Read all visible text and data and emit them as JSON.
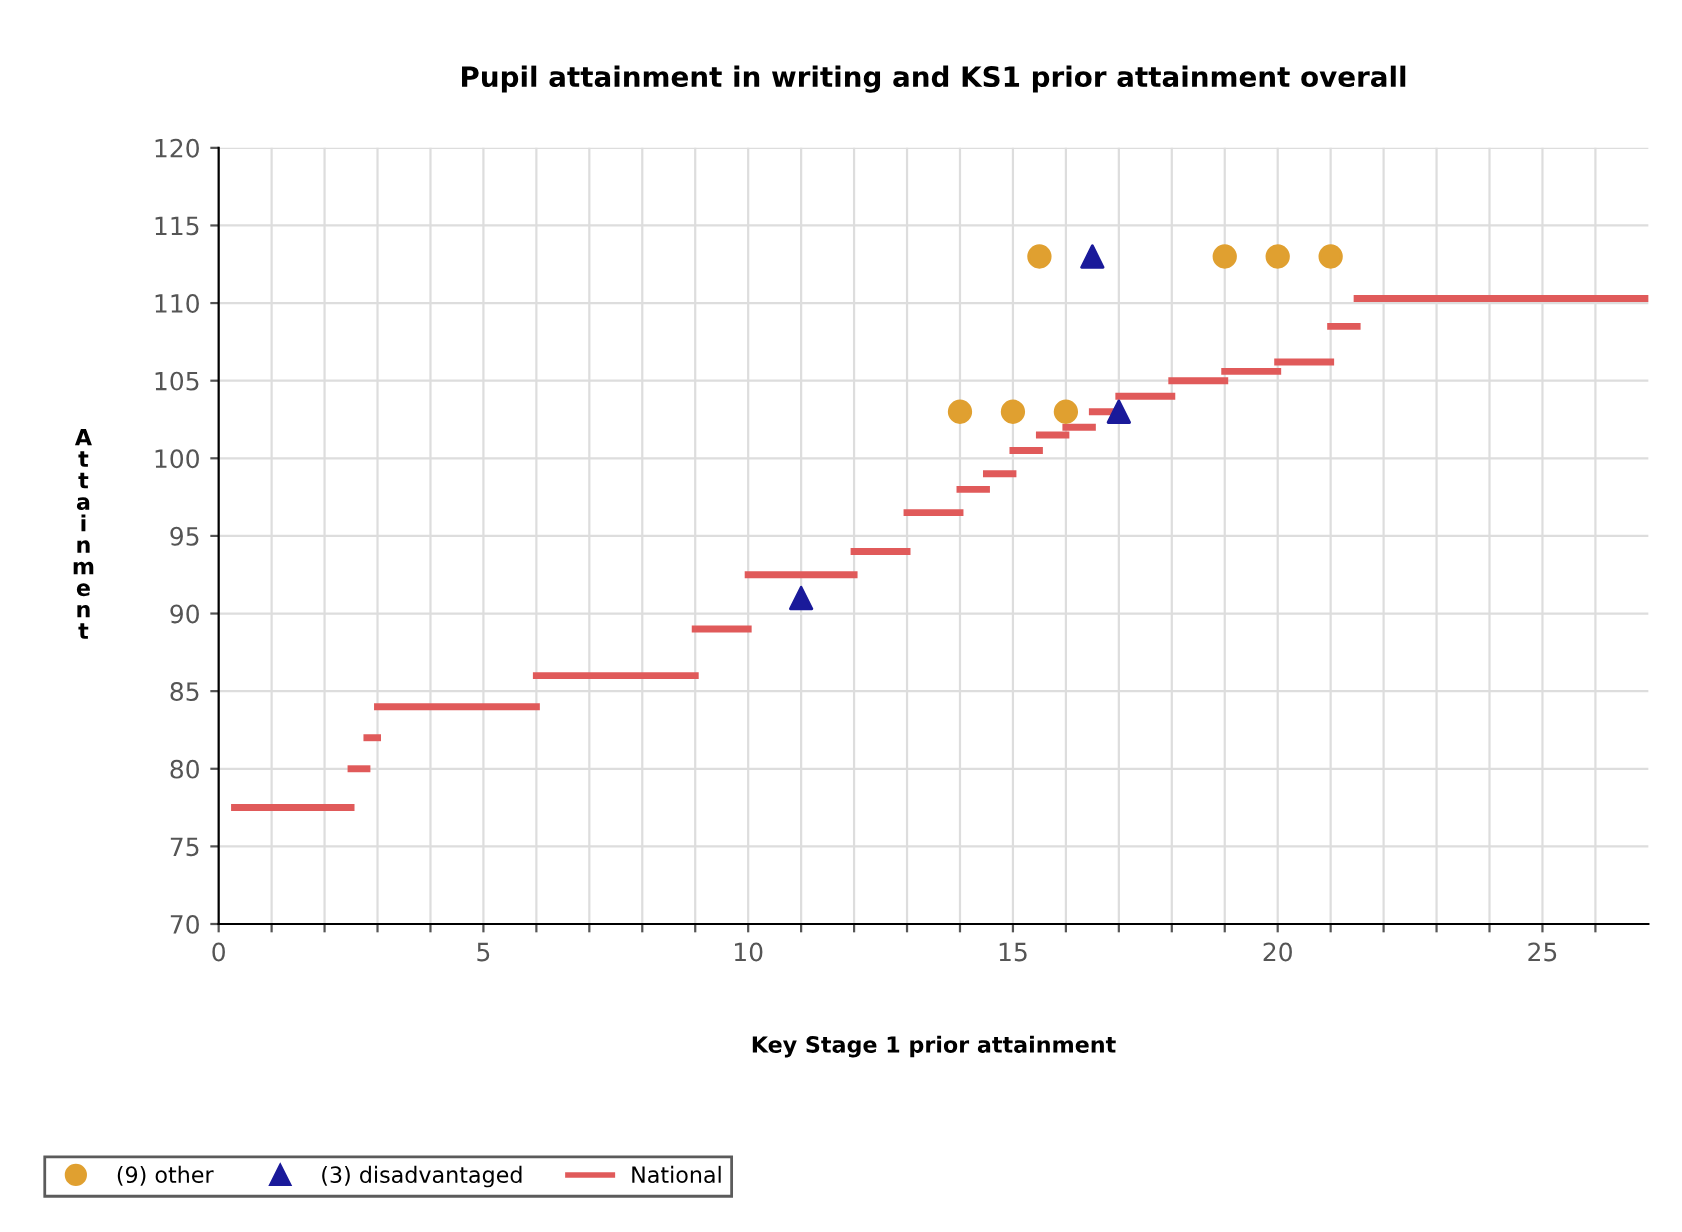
{
  "chart_data": {
    "type": "scatter",
    "title": "Pupil attainment in writing and KS1 prior attainment overall",
    "xlabel": "Key Stage 1 prior attainment",
    "ylabel": "Attainment",
    "xlim": [
      0,
      27
    ],
    "ylim": [
      70,
      120
    ],
    "xticks": [
      0,
      {
        "value": 1,
        "label": null
      },
      {
        "value": 2,
        "label": null
      },
      {
        "value": 3,
        "label": null
      },
      {
        "value": 4,
        "label": null
      },
      5,
      {
        "value": 6,
        "label": null
      },
      {
        "value": 7,
        "label": null
      },
      {
        "value": 8,
        "label": null
      },
      {
        "value": 9,
        "label": null
      },
      10,
      {
        "value": 11,
        "label": null
      },
      {
        "value": 12,
        "label": null
      },
      {
        "value": 13,
        "label": null
      },
      {
        "value": 14,
        "label": null
      },
      15,
      {
        "value": 16,
        "label": null
      },
      {
        "value": 17,
        "label": null
      },
      {
        "value": 18,
        "label": null
      },
      {
        "value": 19,
        "label": null
      },
      20,
      {
        "value": 21,
        "label": null
      },
      {
        "value": 22,
        "label": null
      },
      {
        "value": 23,
        "label": null
      },
      {
        "value": 24,
        "label": null
      },
      25,
      {
        "value": 26,
        "label": null
      }
    ],
    "yticks": [
      70,
      75,
      80,
      85,
      90,
      95,
      100,
      105,
      110,
      115,
      120
    ],
    "grid": true,
    "legend": "bottom",
    "series": [
      {
        "name": "(9) other",
        "marker": "circle",
        "color": "#e0a030",
        "x": [
          14,
          15,
          16,
          15.5,
          19,
          20,
          21
        ],
        "values": [
          103,
          103,
          103,
          113,
          113,
          113,
          113
        ]
      },
      {
        "name": "(3) disadvantaged",
        "marker": "triangle",
        "color": "#1a1a9a",
        "x": [
          11,
          16.5,
          17
        ],
        "values": [
          91,
          113,
          103
        ]
      },
      {
        "name": "National",
        "type": "line",
        "color": "#e05a5a",
        "x": [
          0.3,
          2.5
        ],
        "values": [
          77.5,
          77.5
        ]
      },
      {
        "type": "line",
        "color": "#e05a5a",
        "x": [
          2.5,
          2.8
        ],
        "values": [
          80,
          80
        ]
      },
      {
        "type": "line",
        "color": "#e05a5a",
        "x": [
          2.8,
          3
        ],
        "values": [
          82,
          82
        ]
      },
      {
        "type": "line",
        "color": "#e05a5a",
        "x": [
          3,
          6
        ],
        "values": [
          84,
          84
        ]
      },
      {
        "type": "line",
        "color": "#e05a5a",
        "x": [
          6,
          9
        ],
        "values": [
          86,
          86
        ]
      },
      {
        "type": "line",
        "color": "#e05a5a",
        "x": [
          9,
          10
        ],
        "values": [
          89,
          89
        ]
      },
      {
        "type": "line",
        "color": "#e05a5a",
        "x": [
          10,
          12
        ],
        "values": [
          92.5,
          92.5
        ]
      },
      {
        "type": "line",
        "color": "#e05a5a",
        "x": [
          12,
          13
        ],
        "values": [
          94,
          94
        ]
      },
      {
        "type": "line",
        "color": "#e05a5a",
        "x": [
          13,
          14
        ],
        "values": [
          96.5,
          96.5
        ]
      },
      {
        "type": "line",
        "color": "#e05a5a",
        "x": [
          14,
          14.5
        ],
        "values": [
          98,
          98
        ]
      },
      {
        "type": "line",
        "color": "#e05a5a",
        "x": [
          14.5,
          15
        ],
        "values": [
          99,
          99
        ]
      },
      {
        "type": "line",
        "color": "#e05a5a",
        "x": [
          15,
          15.5
        ],
        "values": [
          100.5,
          100.5
        ]
      },
      {
        "type": "line",
        "color": "#e05a5a",
        "x": [
          15.5,
          16
        ],
        "values": [
          101.5,
          101.5
        ]
      },
      {
        "type": "line",
        "color": "#e05a5a",
        "x": [
          16,
          16.5
        ],
        "values": [
          102,
          102
        ]
      },
      {
        "type": "line",
        "color": "#e05a5a",
        "x": [
          16.5,
          17
        ],
        "values": [
          103,
          103
        ]
      },
      {
        "type": "line",
        "color": "#e05a5a",
        "x": [
          17,
          18
        ],
        "values": [
          104,
          104
        ]
      },
      {
        "type": "line",
        "color": "#e05a5a",
        "x": [
          18,
          19
        ],
        "values": [
          105,
          105
        ]
      },
      {
        "type": "line",
        "color": "#e05a5a",
        "x": [
          19,
          20
        ],
        "values": [
          105.6,
          105.6
        ]
      },
      {
        "type": "line",
        "color": "#e05a5a",
        "x": [
          20,
          21
        ],
        "values": [
          106.2,
          106.2
        ]
      },
      {
        "type": "line",
        "color": "#e05a5a",
        "x": [
          21,
          21.5
        ],
        "values": [
          108.5,
          108.5
        ]
      },
      {
        "type": "line",
        "color": "#e05a5a",
        "x": [
          21.5,
          27
        ],
        "values": [
          110.3,
          110.3
        ]
      }
    ]
  }
}
